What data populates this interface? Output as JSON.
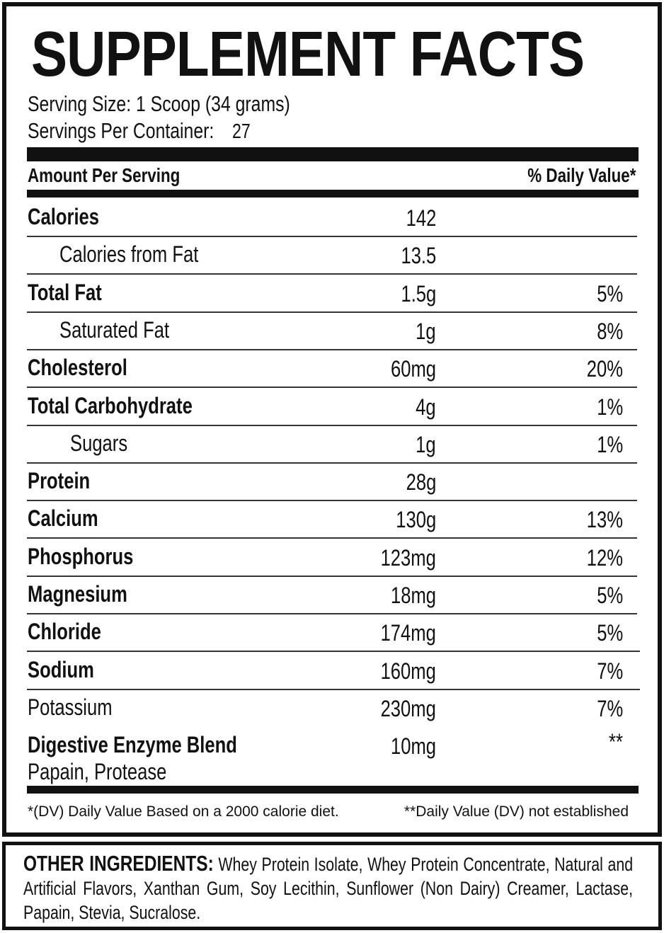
{
  "title": "SUPPLEMENT FACTS",
  "serving_size": "Serving Size: 1 Scoop (34 grams)",
  "servings_per_container": {
    "label": "Servings Per Container:",
    "value": "27"
  },
  "header": {
    "amount": "Amount Per Serving",
    "daily_value": "% Daily Value*"
  },
  "rows": [
    {
      "name": "Calories",
      "amount": "142"
    },
    {
      "name": "Calories from Fat",
      "amount": "13.5"
    },
    {
      "name": "Total Fat",
      "amount": "1.5g",
      "dv": "5%"
    },
    {
      "name": "Saturated Fat",
      "amount": "1g",
      "dv": "8%"
    },
    {
      "name": "Cholesterol",
      "amount": "60mg",
      "dv": "20%"
    },
    {
      "name": "Total Carbohydrate",
      "amount": "4g",
      "dv": "1%"
    },
    {
      "name": "Sugars",
      "amount": "1g",
      "dv": "1%"
    },
    {
      "name": "Protein",
      "amount": "28g"
    },
    {
      "name": "Calcium",
      "amount": "130g",
      "dv": "13%"
    },
    {
      "name": "Phosphorus",
      "amount": "123mg",
      "dv": "12%"
    },
    {
      "name": "Magnesium",
      "amount": "18mg",
      "dv": "5%"
    },
    {
      "name": "Chloride",
      "amount": "174mg",
      "dv": "5%"
    },
    {
      "name": "Sodium",
      "amount": "160mg",
      "dv": "7%"
    },
    {
      "name": "Potassium",
      "amount": "230mg",
      "dv": "7%"
    },
    {
      "name": "Digestive Enzyme Blend",
      "amount": "10mg",
      "dv": "**",
      "detail": "Papain, Protease"
    }
  ],
  "footnotes": {
    "left": "*(DV) Daily Value Based on a 2000 calorie diet.",
    "right": "**Daily Value (DV) not established"
  },
  "other_ingredients": {
    "label": "OTHER INGREDIENTS:",
    "text": "Whey Protein Isolate, Whey Protein Concentrate, Natural and Artificial Flavors, Xanthan Gum, Soy Lecithin, Sunflower (Non Dairy) Creamer, Lactase, Papain, Stevia, Sucralose."
  }
}
